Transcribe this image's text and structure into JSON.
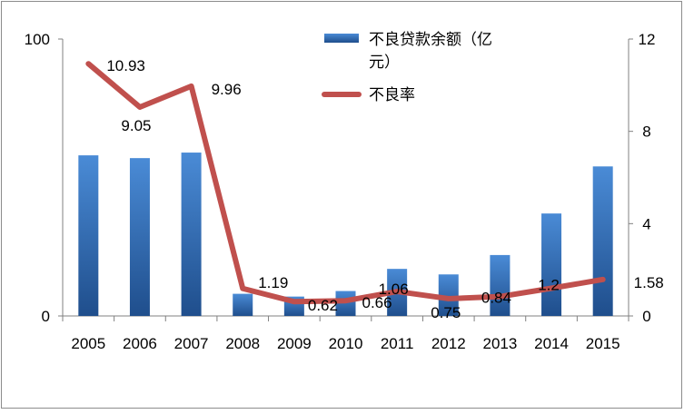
{
  "chart_data": {
    "type": "bar",
    "title": "",
    "categories": [
      "2005",
      "2006",
      "2007",
      "2008",
      "2009",
      "2010",
      "2011",
      "2012",
      "2013",
      "2014",
      "2015"
    ],
    "series": [
      {
        "name": "不良贷款余额（亿元）",
        "type": "bar",
        "axis": "left",
        "values": [
          58,
          57,
          59,
          8,
          7,
          9,
          17,
          15,
          22,
          37,
          54
        ],
        "color": "#3f7cc4"
      },
      {
        "name": "不良率",
        "type": "line",
        "axis": "right",
        "values": [
          10.93,
          9.05,
          9.96,
          1.19,
          0.62,
          0.66,
          1.06,
          0.75,
          0.84,
          1.2,
          1.58
        ],
        "labels": [
          "10.93",
          "9.05",
          "9.96",
          "1.19",
          "0.62",
          "0.66",
          "1.06",
          "0.75",
          "0.84",
          "1.2",
          "1.58"
        ],
        "color": "#c0504d"
      }
    ],
    "y_left": {
      "ylim": [
        0,
        100
      ],
      "ticks": [
        "0",
        "100"
      ]
    },
    "y_right": {
      "ylim": [
        0,
        12
      ],
      "ticks": [
        "0",
        "4",
        "8",
        "12"
      ]
    },
    "legend": {
      "placement": "top-right",
      "bar_label_lines": [
        "不良贷款余额（亿",
        "元）"
      ],
      "line_label": "不良率"
    },
    "grid": false
  }
}
